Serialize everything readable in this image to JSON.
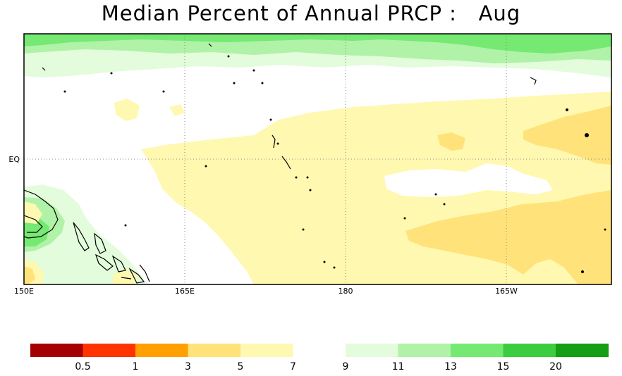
{
  "title": "Median Percent of Annual PRCP :   Aug",
  "map": {
    "x_ticks": [
      "150E",
      "165E",
      "180",
      "165W"
    ],
    "y_ticks": [
      "EQ"
    ]
  },
  "colorbar": {
    "colors": [
      "#a50000",
      "#ff3300",
      "#ff9f00",
      "#ffe37a",
      "#fff8b0",
      "#ffffff",
      "#e3fcdc",
      "#b0f2a8",
      "#75e972",
      "#3ccc3f",
      "#159d15"
    ],
    "labels": [
      "0.5",
      "1",
      "3",
      "5",
      "7",
      "9",
      "11",
      "13",
      "15",
      "20"
    ]
  }
}
